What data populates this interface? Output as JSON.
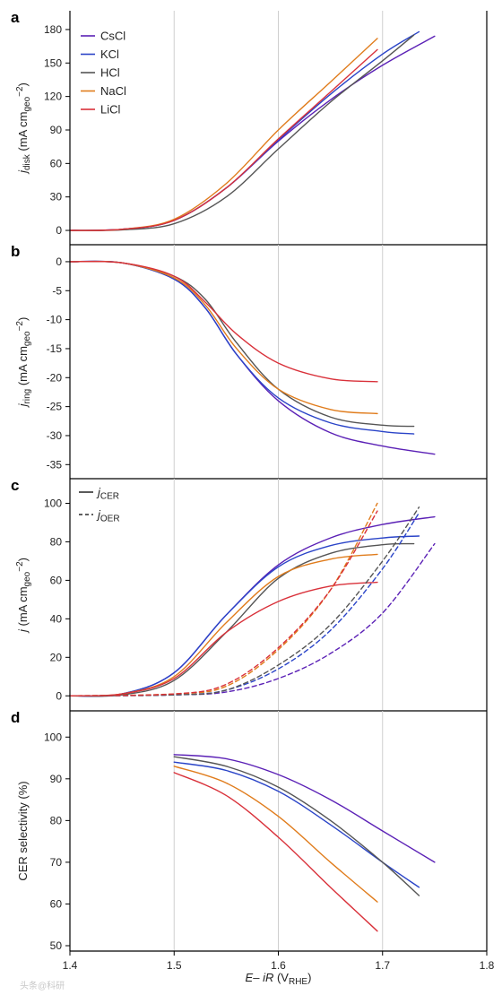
{
  "colors": {
    "CsCl": "#5b21b6",
    "KCl": "#2a44c8",
    "HCl": "#555555",
    "NaCl": "#e07c1c",
    "LiCl": "#d9313a"
  },
  "x_axis": {
    "label_main": "E",
    "label_minus": "– ",
    "label_ir": "iR",
    "label_open": " (V",
    "label_sub": "RHE",
    "label_close": ")",
    "range": [
      1.4,
      1.8
    ],
    "ticks": [
      "1.4",
      "1.5",
      "1.6",
      "1.7",
      "1.8"
    ]
  },
  "watermark": "头条@科研",
  "chart_data": [
    {
      "panel": "a",
      "type": "line",
      "ylabel_main": "j",
      "ylabel_sub": "disk",
      "ylabel_unit": " (mA cm",
      "ylabel_unit_sub": "geo",
      "ylabel_unit_sup": "−2",
      "ylabel_close": ")",
      "ylim": [
        -8,
        192
      ],
      "yticks": [
        0,
        30,
        60,
        90,
        120,
        150,
        180
      ],
      "legend": [
        "CsCl",
        "KCl",
        "HCl",
        "NaCl",
        "LiCl"
      ],
      "legend_position": "top-left",
      "grid": true,
      "series": [
        {
          "name": "CsCl",
          "x": [
            1.4,
            1.45,
            1.5,
            1.55,
            1.6,
            1.65,
            1.7,
            1.75
          ],
          "y": [
            0,
            1,
            9,
            38,
            80,
            117,
            148,
            174
          ]
        },
        {
          "name": "KCl",
          "x": [
            1.4,
            1.45,
            1.5,
            1.55,
            1.6,
            1.65,
            1.7,
            1.735
          ],
          "y": [
            0,
            1,
            9,
            38,
            81,
            122,
            158,
            178
          ]
        },
        {
          "name": "HCl",
          "x": [
            1.4,
            1.45,
            1.5,
            1.55,
            1.6,
            1.65,
            1.7,
            1.73
          ],
          "y": [
            0,
            0.5,
            6,
            30,
            73,
            115,
            152,
            175
          ]
        },
        {
          "name": "NaCl",
          "x": [
            1.4,
            1.45,
            1.5,
            1.55,
            1.6,
            1.65,
            1.695
          ],
          "y": [
            0,
            1,
            10,
            42,
            90,
            133,
            172
          ]
        },
        {
          "name": "LiCl",
          "x": [
            1.4,
            1.45,
            1.5,
            1.55,
            1.6,
            1.65,
            1.695
          ],
          "y": [
            0,
            1,
            9,
            38,
            82,
            124,
            162
          ]
        }
      ]
    },
    {
      "panel": "b",
      "type": "line",
      "ylabel_main": "j",
      "ylabel_sub": "ring",
      "ylabel_unit": " (mA cm",
      "ylabel_unit_sub": "geo",
      "ylabel_unit_sup": "−2",
      "ylabel_close": ")",
      "ylim": [
        -36.5,
        2
      ],
      "yticks": [
        0,
        -5,
        -10,
        -15,
        -20,
        -25,
        -30,
        -35
      ],
      "grid": true,
      "series": [
        {
          "name": "CsCl",
          "x": [
            1.4,
            1.45,
            1.5,
            1.53,
            1.56,
            1.6,
            1.65,
            1.7,
            1.75
          ],
          "y": [
            0,
            -0.2,
            -3,
            -8,
            -16,
            -24,
            -29.5,
            -31.8,
            -33.2
          ]
        },
        {
          "name": "KCl",
          "x": [
            1.4,
            1.45,
            1.5,
            1.53,
            1.56,
            1.6,
            1.65,
            1.7,
            1.73
          ],
          "y": [
            0,
            -0.2,
            -3,
            -8,
            -16,
            -23.5,
            -27.8,
            -29.3,
            -29.7
          ]
        },
        {
          "name": "HCl",
          "x": [
            1.4,
            1.45,
            1.5,
            1.53,
            1.56,
            1.6,
            1.65,
            1.7,
            1.73
          ],
          "y": [
            0,
            -0.2,
            -2.5,
            -6.5,
            -14,
            -22,
            -26.8,
            -28.2,
            -28.4
          ]
        },
        {
          "name": "NaCl",
          "x": [
            1.4,
            1.45,
            1.5,
            1.53,
            1.56,
            1.6,
            1.65,
            1.695
          ],
          "y": [
            0,
            -0.2,
            -2.8,
            -7.5,
            -15,
            -22,
            -25.5,
            -26.2
          ]
        },
        {
          "name": "LiCl",
          "x": [
            1.4,
            1.45,
            1.5,
            1.53,
            1.56,
            1.6,
            1.65,
            1.695
          ],
          "y": [
            0,
            -0.2,
            -2.5,
            -7,
            -12.5,
            -17.5,
            -20.2,
            -20.7
          ]
        }
      ]
    },
    {
      "panel": "c",
      "type": "line",
      "ylabel_main": "j",
      "ylabel_sub": "",
      "ylabel_unit": " (mA cm",
      "ylabel_unit_sub": "geo",
      "ylabel_unit_sup": "−2",
      "ylabel_close": ")",
      "ylim": [
        -5,
        110
      ],
      "yticks": [
        0,
        20,
        40,
        60,
        80,
        100
      ],
      "legend": [
        {
          "style": "solid",
          "label_main": "j",
          "label_sub": "CER"
        },
        {
          "style": "dashed",
          "label_main": "j",
          "label_sub": "OER"
        }
      ],
      "legend_position": "top-left",
      "grid": true,
      "series": [
        {
          "name": "CsCl",
          "kind": "CER",
          "x": [
            1.4,
            1.45,
            1.5,
            1.55,
            1.6,
            1.65,
            1.7,
            1.75
          ],
          "y": [
            0,
            1,
            12,
            42,
            68,
            82,
            89,
            93
          ]
        },
        {
          "name": "KCl",
          "kind": "CER",
          "x": [
            1.4,
            1.45,
            1.5,
            1.55,
            1.6,
            1.65,
            1.7,
            1.735
          ],
          "y": [
            0,
            1,
            12,
            42,
            67,
            78,
            82,
            83
          ]
        },
        {
          "name": "HCl",
          "kind": "CER",
          "x": [
            1.4,
            1.45,
            1.5,
            1.55,
            1.6,
            1.65,
            1.7,
            1.73
          ],
          "y": [
            0,
            0.5,
            8,
            33,
            61,
            74,
            78.5,
            79
          ]
        },
        {
          "name": "NaCl",
          "kind": "CER",
          "x": [
            1.4,
            1.45,
            1.5,
            1.55,
            1.6,
            1.65,
            1.695
          ],
          "y": [
            0,
            1,
            10,
            38,
            62,
            71,
            73.5
          ]
        },
        {
          "name": "LiCl",
          "kind": "CER",
          "x": [
            1.4,
            1.45,
            1.5,
            1.55,
            1.6,
            1.65,
            1.695
          ],
          "y": [
            0,
            1,
            9,
            33,
            49,
            57,
            59
          ]
        },
        {
          "name": "CsCl",
          "kind": "OER",
          "x": [
            1.4,
            1.5,
            1.55,
            1.6,
            1.65,
            1.7,
            1.75
          ],
          "y": [
            0,
            0.5,
            2,
            9,
            22,
            43,
            79
          ]
        },
        {
          "name": "KCl",
          "kind": "OER",
          "x": [
            1.4,
            1.5,
            1.55,
            1.6,
            1.65,
            1.7,
            1.735
          ],
          "y": [
            0,
            0.5,
            3,
            14,
            34,
            66,
            95
          ]
        },
        {
          "name": "HCl",
          "kind": "OER",
          "x": [
            1.4,
            1.5,
            1.55,
            1.6,
            1.65,
            1.7,
            1.735
          ],
          "y": [
            0,
            0.5,
            3,
            16,
            37,
            70,
            98
          ]
        },
        {
          "name": "NaCl",
          "kind": "OER",
          "x": [
            1.4,
            1.5,
            1.55,
            1.6,
            1.65,
            1.695
          ],
          "y": [
            0,
            1,
            5,
            24,
            55,
            100
          ]
        },
        {
          "name": "LiCl",
          "kind": "OER",
          "x": [
            1.4,
            1.5,
            1.55,
            1.6,
            1.65,
            1.695
          ],
          "y": [
            0,
            1,
            6,
            25,
            55,
            96
          ]
        }
      ]
    },
    {
      "panel": "d",
      "type": "line",
      "ylabel_main": "CER selectivity (%)",
      "ylabel_sub": "",
      "ylabel_unit": "",
      "ylabel_unit_sub": "",
      "ylabel_unit_sup": "",
      "ylabel_close": "",
      "ylim": [
        50,
        105
      ],
      "yticks": [
        50,
        60,
        70,
        80,
        90,
        100
      ],
      "grid": true,
      "series": [
        {
          "name": "CsCl",
          "x": [
            1.5,
            1.55,
            1.6,
            1.65,
            1.7,
            1.75
          ],
          "y": [
            95.8,
            94.8,
            91,
            85,
            77.5,
            70
          ]
        },
        {
          "name": "KCl",
          "x": [
            1.5,
            1.55,
            1.6,
            1.65,
            1.7,
            1.735
          ],
          "y": [
            94,
            92,
            87,
            79,
            70,
            64
          ]
        },
        {
          "name": "HCl",
          "x": [
            1.5,
            1.55,
            1.6,
            1.65,
            1.7,
            1.735
          ],
          "y": [
            95.3,
            93,
            88,
            80,
            70,
            62
          ]
        },
        {
          "name": "NaCl",
          "x": [
            1.5,
            1.55,
            1.6,
            1.65,
            1.695
          ],
          "y": [
            93,
            89,
            81,
            70,
            60.5
          ]
        },
        {
          "name": "LiCl",
          "x": [
            1.5,
            1.55,
            1.6,
            1.65,
            1.695
          ],
          "y": [
            91.5,
            86,
            76,
            64,
            53.5
          ]
        }
      ]
    }
  ]
}
